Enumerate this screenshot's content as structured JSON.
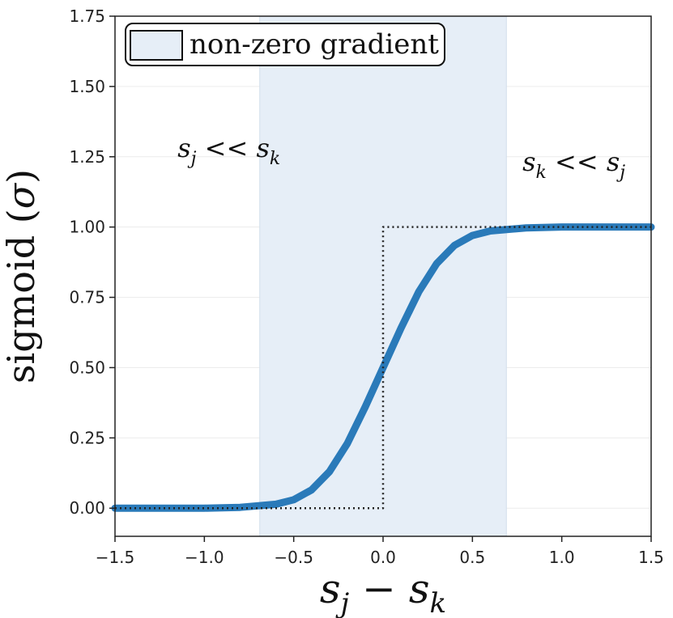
{
  "chart_data": {
    "type": "line",
    "xlabel": "s_j − s_k",
    "ylabel": "sigmoid (σ)",
    "xlim": [
      -1.5,
      1.5
    ],
    "ylim": [
      -0.1,
      1.75
    ],
    "x_ticks": [
      "−1.5",
      "−1.0",
      "−0.5",
      "0.0",
      "0.5",
      "1.0",
      "1.5"
    ],
    "x_tick_values": [
      -1.5,
      -1.0,
      -0.5,
      0.0,
      0.5,
      1.0,
      1.5
    ],
    "y_ticks": [
      "0.00",
      "0.25",
      "0.50",
      "0.75",
      "1.00",
      "1.25",
      "1.50",
      "1.75"
    ],
    "y_tick_values": [
      0.0,
      0.25,
      0.5,
      0.75,
      1.0,
      1.25,
      1.5,
      1.75
    ],
    "grid": true,
    "legend": {
      "label": "non-zero gradient",
      "placement": "top-left"
    },
    "shaded_region": {
      "x_start": -0.69,
      "x_end": 0.69,
      "color": "#e6eef7"
    },
    "series": [
      {
        "style": "solid",
        "color": "#2a7ab9",
        "x": [
          -1.5,
          -1.25,
          -1.0,
          -0.8,
          -0.6,
          -0.5,
          -0.4,
          -0.3,
          -0.2,
          -0.1,
          0.0,
          0.1,
          0.2,
          0.3,
          0.4,
          0.5,
          0.6,
          0.8,
          1.0,
          1.25,
          1.5
        ],
        "y": [
          0.0,
          0.0,
          0.0,
          0.003,
          0.014,
          0.03,
          0.065,
          0.13,
          0.23,
          0.36,
          0.5,
          0.64,
          0.77,
          0.87,
          0.935,
          0.97,
          0.986,
          0.997,
          1.0,
          1.0,
          1.0
        ]
      },
      {
        "style": "dotted",
        "color": "#222222",
        "x": [
          -1.5,
          0.0,
          0.0,
          1.5
        ],
        "y": [
          0.0,
          0.0,
          1.0,
          1.0
        ]
      }
    ],
    "annotations": [
      {
        "base1": "s",
        "sub1": "j",
        "op": " << ",
        "base2": "s",
        "sub2": "k",
        "x": -1.15,
        "y": 1.25
      },
      {
        "base1": "s",
        "sub1": "k",
        "op": " << ",
        "base2": "s",
        "sub2": "j",
        "x": 0.78,
        "y": 1.2
      }
    ],
    "xlabel_parts": {
      "base1": "s",
      "sub1": "j",
      "op": " − ",
      "base2": "s",
      "sub2": "k"
    },
    "ylabel_parts": {
      "text": "sigmoid (",
      "sym": "σ",
      "close": ")"
    }
  }
}
